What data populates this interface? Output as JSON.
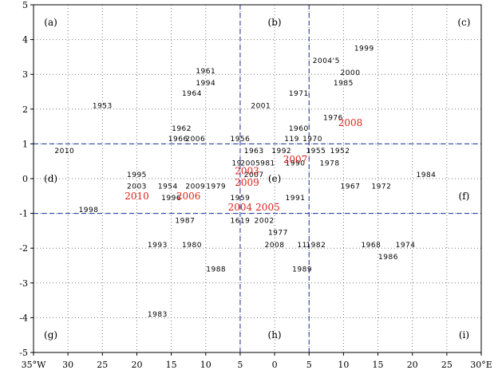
{
  "chart_data": {
    "type": "scatter",
    "title": "",
    "xlabel": "",
    "ylabel": "",
    "xlim": [
      -35,
      30
    ],
    "ylim": [
      -5,
      5
    ],
    "x_ticks": [
      {
        "v": -35,
        "label": "35°W"
      },
      {
        "v": -30,
        "label": "30"
      },
      {
        "v": -25,
        "label": "25"
      },
      {
        "v": -20,
        "label": "20"
      },
      {
        "v": -15,
        "label": "15"
      },
      {
        "v": -10,
        "label": "10"
      },
      {
        "v": -5,
        "label": "5"
      },
      {
        "v": 0,
        "label": "0"
      },
      {
        "v": 5,
        "label": "5"
      },
      {
        "v": 10,
        "label": "10"
      },
      {
        "v": 15,
        "label": "15"
      },
      {
        "v": 20,
        "label": "20"
      },
      {
        "v": 25,
        "label": "25"
      },
      {
        "v": 30,
        "label": "30°E"
      }
    ],
    "y_ticks": [
      {
        "v": 5,
        "label": "5"
      },
      {
        "v": 4,
        "label": "4"
      },
      {
        "v": 3,
        "label": "3"
      },
      {
        "v": 2,
        "label": "2"
      },
      {
        "v": 1,
        "label": "1"
      },
      {
        "v": 0,
        "label": "0"
      },
      {
        "v": -1,
        "label": "-1"
      },
      {
        "v": -2,
        "label": "-2"
      },
      {
        "v": -3,
        "label": "-3"
      },
      {
        "v": -4,
        "label": "-4"
      },
      {
        "v": -5,
        "label": "-5"
      }
    ],
    "grid": "dotted",
    "dashed_lines": {
      "x": [
        -5,
        5
      ],
      "y": [
        1,
        -1
      ],
      "color": "#1f2f9e"
    },
    "panel_labels": [
      {
        "label": "(a)",
        "x": -32.5,
        "y": 4.5
      },
      {
        "label": "(b)",
        "x": 0,
        "y": 4.5
      },
      {
        "label": "(c)",
        "x": 27.5,
        "y": 4.5
      },
      {
        "label": "(d)",
        "x": -32.5,
        "y": 0
      },
      {
        "label": "(e)",
        "x": 0,
        "y": 0
      },
      {
        "label": "(f)",
        "x": 27.5,
        "y": -0.5
      },
      {
        "label": "(g)",
        "x": -32.5,
        "y": -4.5
      },
      {
        "label": "(h)",
        "x": 0,
        "y": -4.5
      },
      {
        "label": "(i)",
        "x": 27.5,
        "y": -4.5
      }
    ],
    "series": [
      {
        "color": "#000000",
        "points": [
          {
            "label": "1999",
            "x": 13,
            "y": 3.75
          },
          {
            "label": "2004'5",
            "x": 7.5,
            "y": 3.4
          },
          {
            "label": "2000",
            "x": 11,
            "y": 3.05
          },
          {
            "label": "1985",
            "x": 10,
            "y": 2.75
          },
          {
            "label": "1961",
            "x": -10,
            "y": 3.1
          },
          {
            "label": "1994",
            "x": -10,
            "y": 2.75
          },
          {
            "label": "1964",
            "x": -12,
            "y": 2.45
          },
          {
            "label": "1971",
            "x": 3.5,
            "y": 2.45
          },
          {
            "label": "1953",
            "x": -25,
            "y": 2.1
          },
          {
            "label": "2001",
            "x": -2,
            "y": 2.1
          },
          {
            "label": "1976",
            "x": 8.5,
            "y": 1.75
          },
          {
            "label": "1962",
            "x": -13.5,
            "y": 1.45
          },
          {
            "label": "1960",
            "x": 3.5,
            "y": 1.45
          },
          {
            "label": "1966",
            "x": -14,
            "y": 1.15
          },
          {
            "label": "2006",
            "x": -11.5,
            "y": 1.15
          },
          {
            "label": "1956",
            "x": -5,
            "y": 1.15
          },
          {
            "label": "119",
            "x": 2.5,
            "y": 1.15
          },
          {
            "label": "1970",
            "x": 5.5,
            "y": 1.15
          },
          {
            "label": "2010",
            "x": -30.5,
            "y": 0.8
          },
          {
            "label": "1963",
            "x": -3,
            "y": 0.8
          },
          {
            "label": "1992",
            "x": 1,
            "y": 0.8
          },
          {
            "label": "1955",
            "x": 6,
            "y": 0.8
          },
          {
            "label": "1952",
            "x": 9.5,
            "y": 0.8
          },
          {
            "label": "19",
            "x": -5.5,
            "y": 0.45
          },
          {
            "label": "2005",
            "x": -3.5,
            "y": 0.45
          },
          {
            "label": "981",
            "x": -1,
            "y": 0.45
          },
          {
            "label": "1990",
            "x": 3,
            "y": 0.45
          },
          {
            "label": "1978",
            "x": 8,
            "y": 0.45
          },
          {
            "label": "1995",
            "x": -20,
            "y": 0.12
          },
          {
            "label": "2007",
            "x": -3,
            "y": 0.12
          },
          {
            "label": "1984",
            "x": 22,
            "y": 0.12
          },
          {
            "label": "2003",
            "x": -20,
            "y": -0.22
          },
          {
            "label": "1954",
            "x": -15.5,
            "y": -0.22
          },
          {
            "label": "2009",
            "x": -11.5,
            "y": -0.22
          },
          {
            "label": "1979",
            "x": -8.5,
            "y": -0.22
          },
          {
            "label": "1967",
            "x": 11,
            "y": -0.22
          },
          {
            "label": "1972",
            "x": 15.5,
            "y": -0.22
          },
          {
            "label": "1996",
            "x": -15,
            "y": -0.55
          },
          {
            "label": "1959",
            "x": -5,
            "y": -0.55
          },
          {
            "label": "1991",
            "x": 3,
            "y": -0.55
          },
          {
            "label": "1998",
            "x": -27,
            "y": -0.9
          },
          {
            "label": "1987",
            "x": -13,
            "y": -1.2
          },
          {
            "label": "1619",
            "x": -5,
            "y": -1.2
          },
          {
            "label": "2002",
            "x": -1.5,
            "y": -1.2
          },
          {
            "label": "1977",
            "x": 0.5,
            "y": -1.55
          },
          {
            "label": "1993",
            "x": -17,
            "y": -1.9
          },
          {
            "label": "1980",
            "x": -12,
            "y": -1.9
          },
          {
            "label": "2008",
            "x": 0,
            "y": -1.9
          },
          {
            "label": "11",
            "x": 4,
            "y": -1.9
          },
          {
            "label": "1982",
            "x": 6,
            "y": -1.9
          },
          {
            "label": "1968",
            "x": 14,
            "y": -1.9
          },
          {
            "label": "1974",
            "x": 19,
            "y": -1.9
          },
          {
            "label": "1986",
            "x": 16.5,
            "y": -2.25
          },
          {
            "label": "1988",
            "x": -8.5,
            "y": -2.6
          },
          {
            "label": "1989",
            "x": 4,
            "y": -2.6
          },
          {
            "label": "1983",
            "x": -17,
            "y": -3.9
          }
        ]
      },
      {
        "color": "#e0201c",
        "points": [
          {
            "label": "2008",
            "x": 11,
            "y": 1.6
          },
          {
            "label": "2007",
            "x": 3,
            "y": 0.55
          },
          {
            "label": "2003",
            "x": -4,
            "y": 0.22
          },
          {
            "label": "2009",
            "x": -4,
            "y": -0.12
          },
          {
            "label": "2010",
            "x": -20,
            "y": -0.5
          },
          {
            "label": "2006",
            "x": -12.5,
            "y": -0.5
          },
          {
            "label": "2004",
            "x": -5,
            "y": -0.82
          },
          {
            "label": "2005",
            "x": -1,
            "y": -0.82
          }
        ]
      }
    ]
  }
}
